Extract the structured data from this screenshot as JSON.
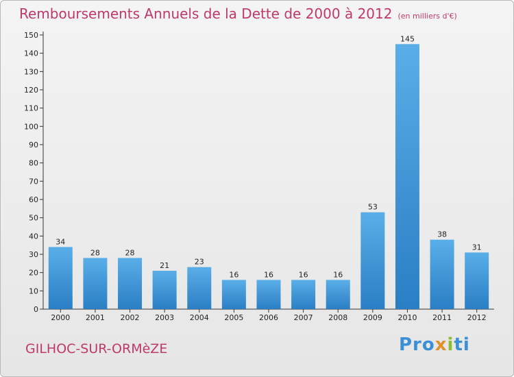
{
  "header": {
    "title": "Remboursements Annuels de la Dette de 2000 à 2012",
    "unit": "(en milliers d'€)"
  },
  "footer": {
    "commune": "GILHOC-SUR-ORMèZE",
    "logo_text": "Proxiti",
    "logo_parts": [
      "Pro",
      "x",
      "i",
      "ti"
    ]
  },
  "colors": {
    "title": "#c0386b",
    "bar_light": "#5aaee8",
    "bar_dark": "#2a7ec4",
    "axis": "#333333"
  },
  "chart_data": {
    "type": "bar",
    "title": "Remboursements Annuels de la Dette de 2000 à 2012",
    "subtitle": "(en milliers d'€)",
    "categories": [
      "2000",
      "2001",
      "2002",
      "2003",
      "2004",
      "2005",
      "2006",
      "2007",
      "2008",
      "2009",
      "2010",
      "2011",
      "2012"
    ],
    "values": [
      34,
      28,
      28,
      21,
      23,
      16,
      16,
      16,
      16,
      53,
      145,
      38,
      31
    ],
    "ylim": [
      0,
      150
    ],
    "yticks": [
      0,
      10,
      20,
      30,
      40,
      50,
      60,
      70,
      80,
      90,
      100,
      110,
      120,
      130,
      140,
      150
    ],
    "grid": false,
    "data_labels": true
  }
}
